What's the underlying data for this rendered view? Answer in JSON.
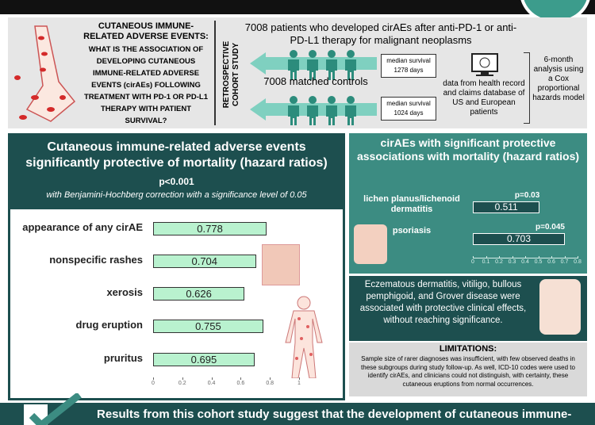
{
  "header_panel": {
    "title": "CUTANEOUS IMMUNE-RELATED ADVERSE EVENTS:",
    "question": "WHAT IS THE ASSOCIATION OF DEVELOPING CUTANEOUS IMMUNE-RELATED ADVERSE EVENTS (cirAEs) FOLLOWING TREATMENT WITH PD-1 OR PD-L1 THERAPY WITH PATIENT SURVIVAL?",
    "study_label": "RETROSPECTIVE COHORT STUDY",
    "cases": "7008 patients who developed cirAEs after anti-PD-1 or anti-PD-L1 therapy for malignant neoplasms",
    "cases_survival": "median survival 1278 days",
    "controls": "7008 matched controls",
    "controls_survival": "median survival 1024 days",
    "data_source": "data from health record and claims database of US and European patients",
    "analysis": "6-month analysis using a Cox proportional hazards model"
  },
  "chart_data": [
    {
      "type": "bar",
      "orientation": "horizontal",
      "title": "Cutaneous immune-related adverse events significantly protective of mortality (hazard ratios)",
      "subtitle": "p<0.001",
      "note": "with Benjamini-Hochberg correction with a significance level of 0.05",
      "categories": [
        "appearance of any cirAE",
        "nonspecific rashes",
        "xerosis",
        "drug eruption",
        "pruritus"
      ],
      "values": [
        0.778,
        0.704,
        0.626,
        0.755,
        0.695
      ],
      "color": "#b9f2cf",
      "xlim": [
        0,
        1
      ],
      "xticks": [
        0,
        0.2,
        0.4,
        0.6,
        0.8,
        1
      ]
    },
    {
      "type": "bar",
      "orientation": "horizontal",
      "title": "cirAEs with significant protective associations with mortality (hazard ratios)",
      "categories": [
        "lichen planus/lichenoid dermatitis",
        "psoriasis"
      ],
      "values": [
        0.511,
        0.703
      ],
      "annotations": [
        "p=0.03",
        "p=0.045"
      ],
      "color": "#1d4f4f",
      "xlim": [
        0,
        0.8
      ],
      "xticks": [
        0,
        0.1,
        0.2,
        0.3,
        0.4,
        0.5,
        0.6,
        0.7,
        0.8
      ]
    }
  ],
  "nonsignificant_note": "Eczematous dermatitis, vitiligo, bullous pemphigoid, and Grover disease were associated with protective clinical effects, without reaching significance.",
  "limitations": {
    "title": "LIMITATIONS:",
    "text": "Sample size of rarer diagnoses was insufficient, with few observed deaths in these subgroups during study follow-up. As well, ICD-10 codes were used to identify cirAEs, and clinicians could not distinguish, with certainty, these cutaneous eruptions from normal occurrences."
  },
  "conclusion": "Results from this cohort study suggest that the development of cutaneous immune-"
}
